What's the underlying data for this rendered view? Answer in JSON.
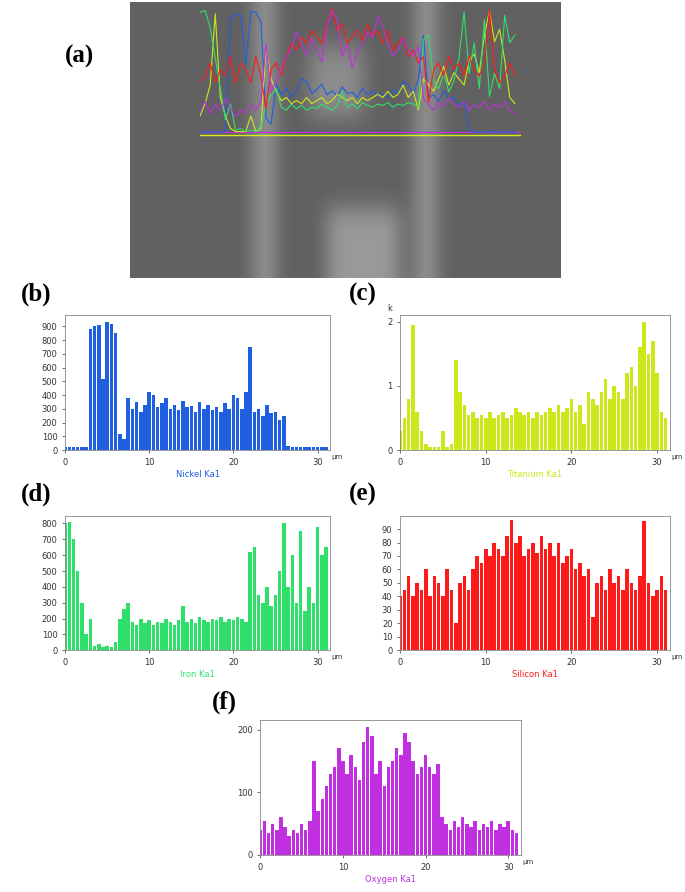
{
  "chart_data": [
    {
      "type": "image",
      "panel": "(a)"
    },
    {
      "type": "bar",
      "panel": "(b)",
      "title": "Nickel Ka1",
      "xlabel": "µm",
      "color": "#1f5fe0",
      "x": [
        0,
        0.5,
        1,
        1.5,
        2,
        2.5,
        3,
        3.5,
        4,
        4.5,
        5,
        5.5,
        6,
        6.5,
        7,
        7.5,
        8,
        8.5,
        9,
        9.5,
        10,
        10.5,
        11,
        11.5,
        12,
        12.5,
        13,
        13.5,
        14,
        14.5,
        15,
        15.5,
        16,
        16.5,
        17,
        17.5,
        18,
        18.5,
        19,
        19.5,
        20,
        20.5,
        21,
        21.5,
        22,
        22.5,
        23,
        23.5,
        24,
        24.5,
        25,
        25.5,
        26,
        26.5,
        27,
        27.5,
        28,
        28.5,
        29,
        29.5,
        30,
        30.5,
        31
      ],
      "values": [
        20,
        20,
        20,
        20,
        20,
        25,
        880,
        900,
        910,
        520,
        930,
        920,
        850,
        120,
        80,
        380,
        300,
        350,
        280,
        330,
        420,
        400,
        310,
        340,
        380,
        300,
        330,
        290,
        360,
        310,
        320,
        280,
        350,
        300,
        330,
        290,
        310,
        280,
        340,
        300,
        400,
        380,
        300,
        420,
        750,
        280,
        300,
        250,
        330,
        270,
        280,
        220,
        250,
        30,
        20,
        20,
        20,
        20,
        25,
        20,
        20,
        20,
        20
      ],
      "xlim": [
        0,
        31.5
      ],
      "xticks": [
        0,
        10,
        20,
        30
      ],
      "ylim": [
        0,
        980
      ],
      "yticks": [
        0,
        100,
        200,
        300,
        400,
        500,
        600,
        700,
        800,
        900
      ]
    },
    {
      "type": "bar",
      "panel": "(c)",
      "title": "Titanium Ka1",
      "xlabel": "µm",
      "ylabel": "k",
      "color": "#cce81a",
      "x": [
        0,
        0.5,
        1,
        1.5,
        2,
        2.5,
        3,
        3.5,
        4,
        4.5,
        5,
        5.5,
        6,
        6.5,
        7,
        7.5,
        8,
        8.5,
        9,
        9.5,
        10,
        10.5,
        11,
        11.5,
        12,
        12.5,
        13,
        13.5,
        14,
        14.5,
        15,
        15.5,
        16,
        16.5,
        17,
        17.5,
        18,
        18.5,
        19,
        19.5,
        20,
        20.5,
        21,
        21.5,
        22,
        22.5,
        23,
        23.5,
        24,
        24.5,
        25,
        25.5,
        26,
        26.5,
        27,
        27.5,
        28,
        28.5,
        29,
        29.5,
        30,
        30.5,
        31
      ],
      "values": [
        0.3,
        0.5,
        0.8,
        1.95,
        0.6,
        0.3,
        0.1,
        0.05,
        0.05,
        0.05,
        0.3,
        0.05,
        0.1,
        1.4,
        0.9,
        0.7,
        0.55,
        0.6,
        0.5,
        0.55,
        0.5,
        0.6,
        0.5,
        0.55,
        0.6,
        0.5,
        0.55,
        0.65,
        0.6,
        0.55,
        0.6,
        0.5,
        0.6,
        0.55,
        0.6,
        0.65,
        0.6,
        0.7,
        0.6,
        0.65,
        0.8,
        0.6,
        0.7,
        0.4,
        0.9,
        0.8,
        0.7,
        0.9,
        1.1,
        0.8,
        1.0,
        0.9,
        0.8,
        1.2,
        1.3,
        1.0,
        1.6,
        2.0,
        1.5,
        1.7,
        1.2,
        0.6,
        0.5
      ],
      "xlim": [
        0,
        31.5
      ],
      "xticks": [
        0,
        10,
        20,
        30
      ],
      "ylim": [
        0,
        2.1
      ],
      "yticks": [
        0,
        1,
        2
      ]
    },
    {
      "type": "bar",
      "panel": "(d)",
      "title": "Iron Ka1",
      "xlabel": "µm",
      "color": "#2ee06a",
      "x": [
        0,
        0.5,
        1,
        1.5,
        2,
        2.5,
        3,
        3.5,
        4,
        4.5,
        5,
        5.5,
        6,
        6.5,
        7,
        7.5,
        8,
        8.5,
        9,
        9.5,
        10,
        10.5,
        11,
        11.5,
        12,
        12.5,
        13,
        13.5,
        14,
        14.5,
        15,
        15.5,
        16,
        16.5,
        17,
        17.5,
        18,
        18.5,
        19,
        19.5,
        20,
        20.5,
        21,
        21.5,
        22,
        22.5,
        23,
        23.5,
        24,
        24.5,
        25,
        25.5,
        26,
        26.5,
        27,
        27.5,
        28,
        28.5,
        29,
        29.5,
        30,
        30.5,
        31
      ],
      "values": [
        800,
        810,
        700,
        500,
        300,
        100,
        200,
        30,
        40,
        20,
        30,
        20,
        50,
        200,
        260,
        300,
        180,
        160,
        200,
        170,
        190,
        160,
        180,
        170,
        200,
        180,
        160,
        190,
        280,
        180,
        200,
        170,
        210,
        190,
        180,
        200,
        190,
        210,
        180,
        200,
        190,
        210,
        200,
        180,
        620,
        650,
        350,
        300,
        400,
        280,
        350,
        500,
        800,
        400,
        600,
        300,
        750,
        250,
        400,
        300,
        780,
        600,
        650
      ],
      "xlim": [
        0,
        31.5
      ],
      "xticks": [
        0,
        10,
        20,
        30
      ],
      "ylim": [
        0,
        850
      ],
      "yticks": [
        0,
        100,
        200,
        300,
        400,
        500,
        600,
        700,
        800
      ]
    },
    {
      "type": "bar",
      "panel": "(e)",
      "title": "Silicon Ka1",
      "xlabel": "µm",
      "color": "#ff1a1a",
      "x": [
        0,
        0.5,
        1,
        1.5,
        2,
        2.5,
        3,
        3.5,
        4,
        4.5,
        5,
        5.5,
        6,
        6.5,
        7,
        7.5,
        8,
        8.5,
        9,
        9.5,
        10,
        10.5,
        11,
        11.5,
        12,
        12.5,
        13,
        13.5,
        14,
        14.5,
        15,
        15.5,
        16,
        16.5,
        17,
        17.5,
        18,
        18.5,
        19,
        19.5,
        20,
        20.5,
        21,
        21.5,
        22,
        22.5,
        23,
        23.5,
        24,
        24.5,
        25,
        25.5,
        26,
        26.5,
        27,
        27.5,
        28,
        28.5,
        29,
        29.5,
        30,
        30.5,
        31
      ],
      "values": [
        40,
        45,
        55,
        40,
        50,
        45,
        60,
        40,
        55,
        50,
        40,
        60,
        45,
        20,
        50,
        55,
        45,
        60,
        70,
        65,
        75,
        70,
        80,
        75,
        70,
        85,
        97,
        80,
        85,
        70,
        75,
        80,
        72,
        85,
        75,
        80,
        70,
        80,
        65,
        70,
        75,
        60,
        65,
        55,
        60,
        25,
        50,
        55,
        45,
        60,
        50,
        55,
        45,
        60,
        50,
        45,
        55,
        96,
        50,
        40,
        45,
        55,
        45
      ],
      "xlim": [
        0,
        31.5
      ],
      "xticks": [
        0,
        10,
        20,
        30
      ],
      "ylim": [
        0,
        100
      ],
      "yticks": [
        0,
        10,
        20,
        30,
        40,
        50,
        60,
        70,
        80,
        90
      ]
    },
    {
      "type": "bar",
      "panel": "(f)",
      "title": "Oxygen Ka1",
      "xlabel": "µm",
      "color": "#c030e0",
      "x": [
        0,
        0.5,
        1,
        1.5,
        2,
        2.5,
        3,
        3.5,
        4,
        4.5,
        5,
        5.5,
        6,
        6.5,
        7,
        7.5,
        8,
        8.5,
        9,
        9.5,
        10,
        10.5,
        11,
        11.5,
        12,
        12.5,
        13,
        13.5,
        14,
        14.5,
        15,
        15.5,
        16,
        16.5,
        17,
        17.5,
        18,
        18.5,
        19,
        19.5,
        20,
        20.5,
        21,
        21.5,
        22,
        22.5,
        23,
        23.5,
        24,
        24.5,
        25,
        25.5,
        26,
        26.5,
        27,
        27.5,
        28,
        28.5,
        29,
        29.5,
        30,
        30.5,
        31
      ],
      "values": [
        40,
        55,
        35,
        50,
        40,
        60,
        45,
        30,
        40,
        35,
        50,
        40,
        55,
        150,
        70,
        90,
        110,
        130,
        140,
        170,
        150,
        130,
        160,
        140,
        120,
        180,
        205,
        190,
        130,
        150,
        110,
        140,
        150,
        170,
        160,
        195,
        180,
        150,
        130,
        140,
        160,
        140,
        130,
        145,
        60,
        50,
        40,
        55,
        45,
        60,
        50,
        45,
        55,
        40,
        50,
        45,
        55,
        40,
        50,
        45,
        55,
        40,
        35
      ],
      "xlim": [
        0,
        31.5
      ],
      "xticks": [
        0,
        10,
        20,
        30
      ],
      "ylim": [
        0,
        215
      ],
      "yticks": [
        0,
        100,
        200
      ]
    }
  ]
}
